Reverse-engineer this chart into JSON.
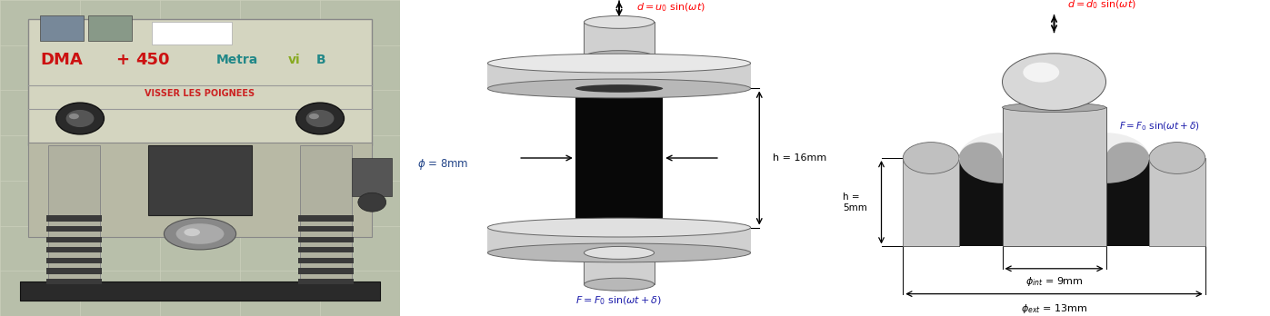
{
  "fig_width": 13.97,
  "fig_height": 3.48,
  "dpi": 100,
  "bg_color": "#ffffff",
  "gray_light": "#d0d0d0",
  "gray_mid": "#b8b8b8",
  "gray_dark": "#909090",
  "black_spec": "#0a0a0a",
  "p2_label_u": "d = u₀ sin(ωt)",
  "p2_label_phi": "ϕ = 8mm",
  "p2_label_h": "h = 16mm",
  "p2_label_F": "F = F₀ sin(ωt + δ)",
  "p3_label_d": "d = d₀ sin(ωt)",
  "p3_label_F": "F = F₀ sin(ωt+δ)",
  "p3_label_h": "h =\n5mm",
  "p3_label_dint": "ϕᴵⁿᵀ = 9mm",
  "p3_label_dext": "ϕₑˣᵀ = 13mm"
}
